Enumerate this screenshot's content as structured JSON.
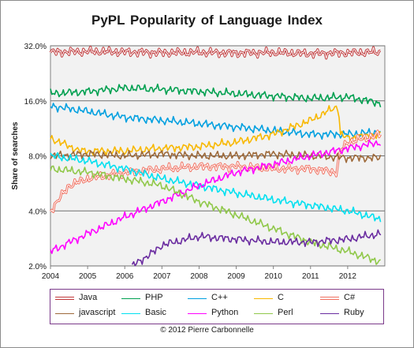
{
  "chart_data": {
    "type": "line",
    "title": "PyPL Popularity  of Language  Index",
    "xlabel": "",
    "ylabel": "Share of searches",
    "y_scale": "log",
    "ylim": [
      2.0,
      32.0
    ],
    "xlim": [
      2004,
      2013
    ],
    "y_ticks": [
      "32.0%",
      "16.0%",
      "8.0%",
      "4.0%",
      "2.0%"
    ],
    "y_tick_values": [
      32,
      16,
      8,
      4,
      2
    ],
    "x_ticks": [
      "2004",
      "2005",
      "2006",
      "2007",
      "2008",
      "2009",
      "2010",
      "2011",
      "2012"
    ],
    "x_tick_values": [
      2004,
      2005,
      2006,
      2007,
      2008,
      2009,
      2010,
      2011,
      2012
    ],
    "grid": "horizontal",
    "plot_background": "#f2f2f2",
    "legend_position": "bottom",
    "credit": "© 2012 Pierre Carbonnelle",
    "series": [
      {
        "name": "Java",
        "color": "#c0393b",
        "style": "double",
        "x": [
          2004,
          2005,
          2006,
          2007,
          2008,
          2009,
          2010,
          2011,
          2012,
          2012.9
        ],
        "values": [
          29.5,
          29.8,
          29.6,
          29.3,
          29.5,
          29.2,
          29.4,
          29.0,
          29.3,
          29.6
        ]
      },
      {
        "name": "PHP",
        "color": "#00a050",
        "style": "solid",
        "x": [
          2004,
          2005,
          2006,
          2007,
          2008,
          2009,
          2010,
          2011,
          2012,
          2012.9
        ],
        "values": [
          17.5,
          18.0,
          18.8,
          18.5,
          18.0,
          17.5,
          17.0,
          16.5,
          16.8,
          15.5
        ]
      },
      {
        "name": "C++",
        "color": "#00a0e0",
        "style": "solid",
        "x": [
          2004,
          2005,
          2006,
          2007,
          2008,
          2009,
          2010,
          2011,
          2012,
          2012.9
        ],
        "values": [
          15.0,
          14.0,
          13.0,
          12.5,
          12.0,
          11.5,
          11.0,
          10.5,
          10.5,
          10.8
        ]
      },
      {
        "name": "C",
        "color": "#f8b800",
        "style": "solid",
        "x": [
          2004,
          2004.8,
          2006,
          2007,
          2008,
          2009,
          2010,
          2011,
          2011.6,
          2011.75,
          2011.8,
          2012,
          2012.9
        ],
        "values": [
          10.0,
          8.5,
          8.5,
          8.8,
          9.0,
          9.5,
          10.5,
          12.5,
          14.5,
          15.0,
          10.5,
          10.0,
          10.5
        ]
      },
      {
        "name": "C#",
        "color": "#f07060",
        "style": "double",
        "x": [
          2004,
          2004.5,
          2005,
          2006,
          2007,
          2008,
          2009,
          2010,
          2011,
          2011.7,
          2011.8,
          2012,
          2012.9
        ],
        "values": [
          4.0,
          5.5,
          6.0,
          6.5,
          6.8,
          7.0,
          7.0,
          6.8,
          6.8,
          6.5,
          8.5,
          9.5,
          10.5
        ]
      },
      {
        "name": "javascript",
        "color": "#9e6a3a",
        "style": "solid",
        "x": [
          2004,
          2005,
          2006,
          2007,
          2008,
          2009,
          2010,
          2011,
          2012,
          2012.9
        ],
        "values": [
          8.0,
          8.2,
          8.0,
          8.2,
          8.0,
          8.0,
          8.2,
          8.0,
          7.8,
          7.8
        ]
      },
      {
        "name": "Basic",
        "color": "#00e0f0",
        "style": "solid",
        "x": [
          2004,
          2005,
          2006,
          2007,
          2008,
          2009,
          2010,
          2011,
          2012,
          2012.9
        ],
        "values": [
          8.0,
          7.5,
          6.8,
          6.0,
          5.5,
          5.0,
          4.6,
          4.3,
          4.0,
          3.6
        ]
      },
      {
        "name": "Python",
        "color": "#ff00ff",
        "style": "solid",
        "x": [
          2004,
          2005,
          2006,
          2007,
          2008,
          2009,
          2010,
          2011,
          2012,
          2012.9
        ],
        "values": [
          2.4,
          3.0,
          3.7,
          4.5,
          5.5,
          6.5,
          7.2,
          8.0,
          8.8,
          9.5
        ]
      },
      {
        "name": "Perl",
        "color": "#90c84a",
        "style": "solid",
        "x": [
          2004,
          2005,
          2006,
          2007,
          2008,
          2009,
          2010,
          2011,
          2012,
          2012.9
        ],
        "values": [
          6.8,
          6.5,
          6.0,
          5.5,
          4.5,
          3.8,
          3.2,
          2.7,
          2.4,
          2.1
        ]
      },
      {
        "name": "Ruby",
        "color": "#6a2ca0",
        "style": "solid",
        "x": [
          2006.2,
          2006.8,
          2007,
          2008,
          2009,
          2010,
          2011,
          2012,
          2012.9
        ],
        "values": [
          2.0,
          2.4,
          2.6,
          2.9,
          2.8,
          2.7,
          2.7,
          2.8,
          3.0
        ]
      }
    ]
  }
}
